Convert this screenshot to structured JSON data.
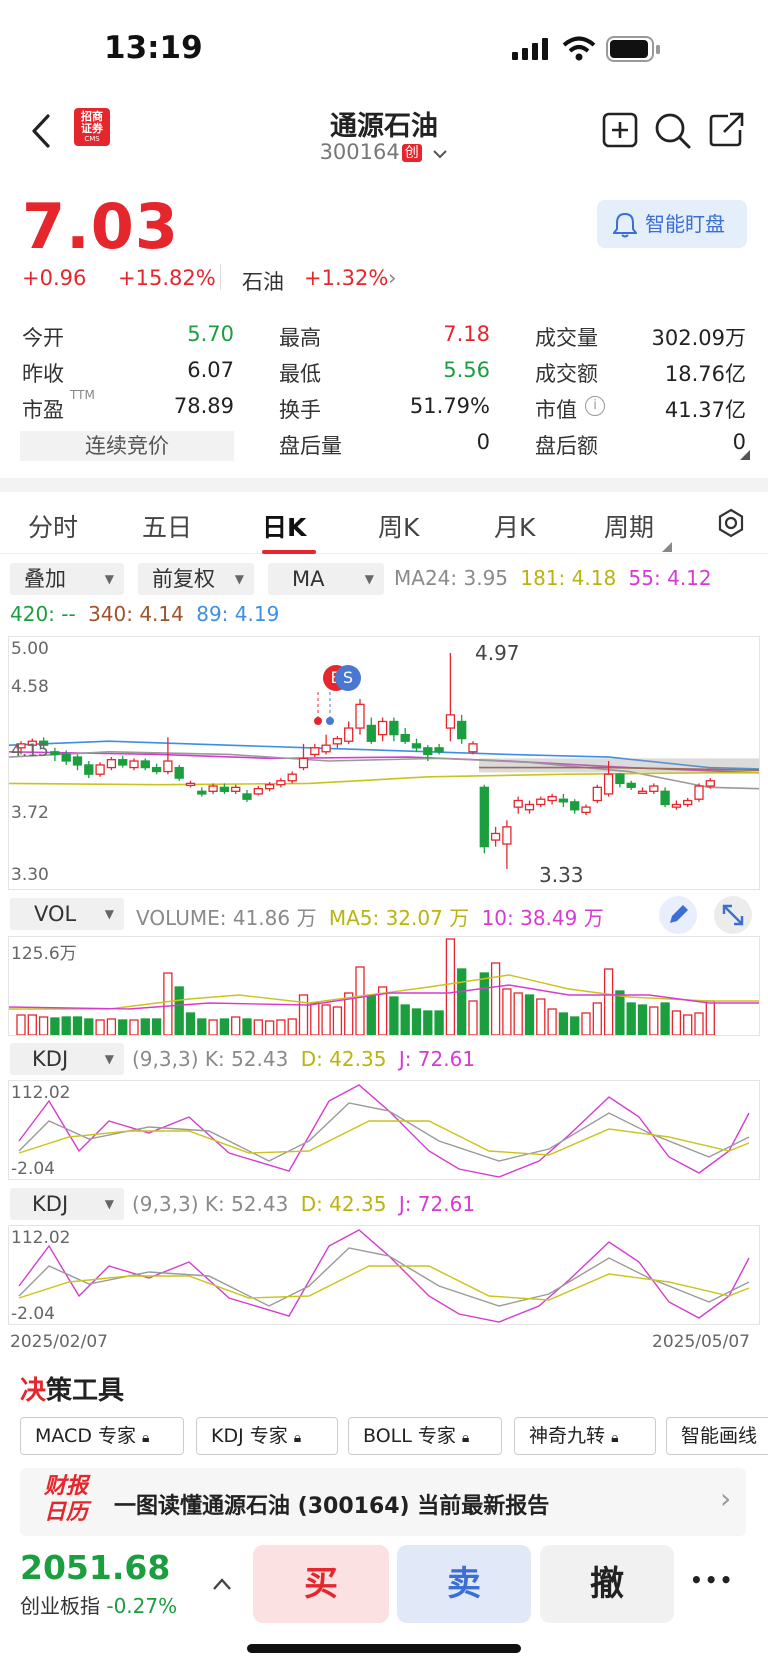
{
  "status_bar": {
    "time": "13:19"
  },
  "header": {
    "stock_name": "通源石油",
    "stock_code": "300164",
    "board_badge": "创",
    "broker_logo_top": "招商",
    "broker_logo_bottom": "证券",
    "broker_logo_sub": "CMS"
  },
  "quote": {
    "price": "7.03",
    "change": "+0.96",
    "change_pct": "+15.82%",
    "sector": "石油",
    "sector_pct": "+1.32%",
    "smart_watch_label": "智能盯盘",
    "stats": [
      {
        "label": "今开",
        "value": "5.70",
        "color": "green"
      },
      {
        "label": "最高",
        "value": "7.18",
        "color": "red"
      },
      {
        "label": "成交量",
        "value": "302.09万",
        "color": "black"
      },
      {
        "label": "昨收",
        "value": "6.07",
        "color": "black"
      },
      {
        "label": "最低",
        "value": "5.56",
        "color": "green"
      },
      {
        "label": "成交额",
        "value": "18.76亿",
        "color": "black"
      },
      {
        "label": "市盈",
        "sup": "TTM",
        "value": "78.89",
        "color": "black"
      },
      {
        "label": "换手",
        "value": "51.79%",
        "color": "black"
      },
      {
        "label": "市值",
        "value": "41.37亿",
        "color": "black"
      },
      {
        "label": "",
        "value": "",
        "color": "black"
      },
      {
        "label": "盘后量",
        "value": "0",
        "color": "black"
      },
      {
        "label": "盘后额",
        "value": "0",
        "color": "black"
      }
    ],
    "auction_label": "连续竞价"
  },
  "tabs": [
    "分时",
    "五日",
    "日K",
    "周K",
    "月K",
    "周期"
  ],
  "active_tab": "日K",
  "controls": {
    "overlay": "叠加",
    "adjust": "前复权",
    "indicator": "MA"
  },
  "ma_legend": {
    "ma24": "MA24: 3.95",
    "ma181": "181: 4.18",
    "ma55": "55: 4.12",
    "ma420": "420: --",
    "ma340": "340: 4.14",
    "ma89": "89: 4.19"
  },
  "kline": {
    "y_ticks": [
      "5.00",
      "4.58",
      "4.15",
      "3.72",
      "3.30"
    ],
    "high_label": "4.97",
    "low_label": "3.33",
    "marker_b": "B",
    "marker_s": "S",
    "colors": {
      "up": "#e5262c",
      "down": "#1b9e3e",
      "ma_blue": "#3d8ee6",
      "ma_magenta": "#d63bd1",
      "ma_yellow": "#c9c41a",
      "ma_grey": "#9a9a9a",
      "ma_brown": "#a0522d"
    }
  },
  "volume": {
    "selector": "VOL",
    "legend_vol": "VOLUME: 41.86 万",
    "legend_ma5": "MA5: 32.07 万",
    "legend_ma10": "10: 38.49 万",
    "y_max": "125.6万"
  },
  "kdj_panels": [
    {
      "selector": "KDJ",
      "params": "(9,3,3)",
      "k": "K: 52.43",
      "d": "D: 42.35",
      "j": "J: 72.61",
      "y_max": "112.02",
      "y_min": "-2.04"
    },
    {
      "selector": "KDJ",
      "params": "(9,3,3)",
      "k": "K: 52.43",
      "d": "D: 42.35",
      "j": "J: 72.61",
      "y_max": "112.02",
      "y_min": "-2.04"
    }
  ],
  "date_range": {
    "start": "2025/02/07",
    "end": "2025/05/07"
  },
  "tools": {
    "title_prefix": "决",
    "title": "策工具",
    "chips": [
      "MACD 专家",
      "KDJ 专家",
      "BOLL 专家",
      "神奇九转",
      "智能画线"
    ]
  },
  "report_banner": {
    "logo_top": "财报",
    "logo_bottom": "日历",
    "text": "一图读懂通源石油 (300164) 当前最新报告"
  },
  "index": {
    "value": "2051.68",
    "name": "创业板指",
    "pct": "-0.27%"
  },
  "actions": {
    "buy": "买",
    "sell": "卖",
    "cancel": "撤",
    "more": "•••"
  }
}
